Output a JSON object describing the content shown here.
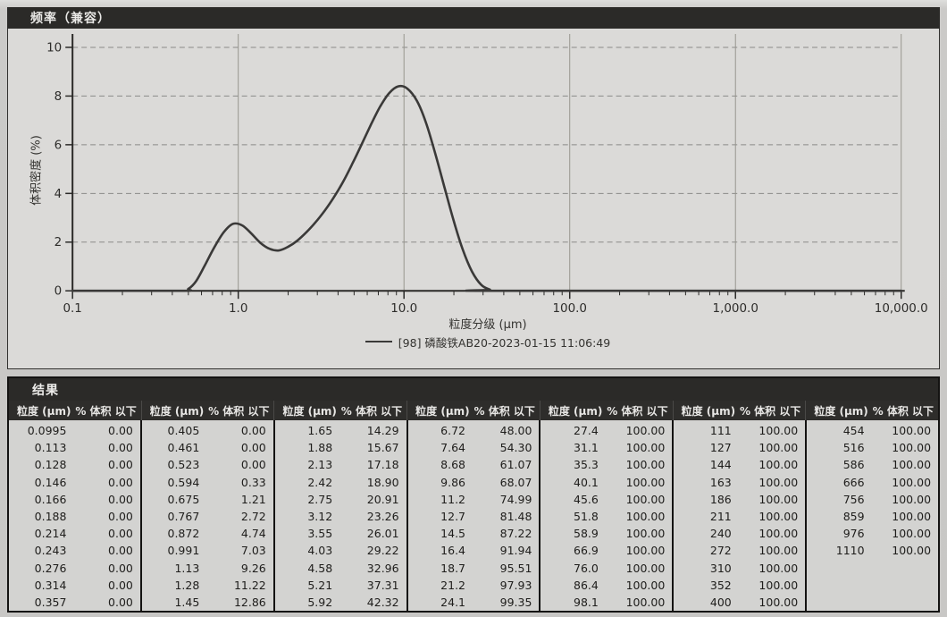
{
  "chart": {
    "title": "频率（兼容）",
    "y_label": "体积密度 (%)",
    "x_label": "粒度分级 (μm)",
    "legend": "[98] 磷酸铁AB20-2023-01-15 11:06:49"
  },
  "chart_data": {
    "type": "line",
    "title": "频率（兼容）",
    "xlabel": "粒度分级 (μm)",
    "ylabel": "体积密度 (%)",
    "x_scale": "log",
    "xlim": [
      0.1,
      10000
    ],
    "ylim": [
      0,
      10
    ],
    "x_ticks": [
      "0.1",
      "1.0",
      "10.0",
      "100.0",
      "1,000.0",
      "10,000.0"
    ],
    "x_tick_values": [
      0.1,
      1,
      10,
      100,
      1000,
      10000
    ],
    "y_ticks": [
      0,
      2,
      4,
      6,
      8,
      10
    ],
    "grid": true,
    "legend_position": "bottom",
    "series": [
      {
        "name": "[98] 磷酸铁AB20-2023-01-15 11:06:49",
        "points": [
          [
            0.1,
            0
          ],
          [
            0.45,
            0
          ],
          [
            0.5,
            0.08
          ],
          [
            0.557,
            0.4
          ],
          [
            0.63,
            1.06
          ],
          [
            0.72,
            1.81
          ],
          [
            0.82,
            2.42
          ],
          [
            0.93,
            2.75
          ],
          [
            1.06,
            2.68
          ],
          [
            1.2,
            2.35
          ],
          [
            1.36,
            1.97
          ],
          [
            1.55,
            1.72
          ],
          [
            1.76,
            1.66
          ],
          [
            2.0,
            1.81
          ],
          [
            2.27,
            2.06
          ],
          [
            2.58,
            2.41
          ],
          [
            2.93,
            2.82
          ],
          [
            3.33,
            3.3
          ],
          [
            3.78,
            3.85
          ],
          [
            4.3,
            4.49
          ],
          [
            4.88,
            5.22
          ],
          [
            5.55,
            6.01
          ],
          [
            6.31,
            6.82
          ],
          [
            7.17,
            7.56
          ],
          [
            8.14,
            8.12
          ],
          [
            9.26,
            8.4
          ],
          [
            10.5,
            8.3
          ],
          [
            12.0,
            7.79
          ],
          [
            13.6,
            6.89
          ],
          [
            15.4,
            5.66
          ],
          [
            17.5,
            4.28
          ],
          [
            19.9,
            2.9
          ],
          [
            22.6,
            1.7
          ],
          [
            25.7,
            0.8
          ],
          [
            29.2,
            0.25
          ],
          [
            33,
            0.05
          ],
          [
            37,
            0
          ],
          [
            10000,
            0
          ]
        ]
      }
    ]
  },
  "results": {
    "title": "结果",
    "header_size": "粒度 (μm)",
    "header_pct": "% 体积 以下",
    "columns": [
      [
        [
          "0.0995",
          "0.00"
        ],
        [
          "0.113",
          "0.00"
        ],
        [
          "0.128",
          "0.00"
        ],
        [
          "0.146",
          "0.00"
        ],
        [
          "0.166",
          "0.00"
        ],
        [
          "0.188",
          "0.00"
        ],
        [
          "0.214",
          "0.00"
        ],
        [
          "0.243",
          "0.00"
        ],
        [
          "0.276",
          "0.00"
        ],
        [
          "0.314",
          "0.00"
        ],
        [
          "0.357",
          "0.00"
        ]
      ],
      [
        [
          "0.405",
          "0.00"
        ],
        [
          "0.461",
          "0.00"
        ],
        [
          "0.523",
          "0.00"
        ],
        [
          "0.594",
          "0.33"
        ],
        [
          "0.675",
          "1.21"
        ],
        [
          "0.767",
          "2.72"
        ],
        [
          "0.872",
          "4.74"
        ],
        [
          "0.991",
          "7.03"
        ],
        [
          "1.13",
          "9.26"
        ],
        [
          "1.28",
          "11.22"
        ],
        [
          "1.45",
          "12.86"
        ]
      ],
      [
        [
          "1.65",
          "14.29"
        ],
        [
          "1.88",
          "15.67"
        ],
        [
          "2.13",
          "17.18"
        ],
        [
          "2.42",
          "18.90"
        ],
        [
          "2.75",
          "20.91"
        ],
        [
          "3.12",
          "23.26"
        ],
        [
          "3.55",
          "26.01"
        ],
        [
          "4.03",
          "29.22"
        ],
        [
          "4.58",
          "32.96"
        ],
        [
          "5.21",
          "37.31"
        ],
        [
          "5.92",
          "42.32"
        ]
      ],
      [
        [
          "6.72",
          "48.00"
        ],
        [
          "7.64",
          "54.30"
        ],
        [
          "8.68",
          "61.07"
        ],
        [
          "9.86",
          "68.07"
        ],
        [
          "11.2",
          "74.99"
        ],
        [
          "12.7",
          "81.48"
        ],
        [
          "14.5",
          "87.22"
        ],
        [
          "16.4",
          "91.94"
        ],
        [
          "18.7",
          "95.51"
        ],
        [
          "21.2",
          "97.93"
        ],
        [
          "24.1",
          "99.35"
        ]
      ],
      [
        [
          "27.4",
          "100.00"
        ],
        [
          "31.1",
          "100.00"
        ],
        [
          "35.3",
          "100.00"
        ],
        [
          "40.1",
          "100.00"
        ],
        [
          "45.6",
          "100.00"
        ],
        [
          "51.8",
          "100.00"
        ],
        [
          "58.9",
          "100.00"
        ],
        [
          "66.9",
          "100.00"
        ],
        [
          "76.0",
          "100.00"
        ],
        [
          "86.4",
          "100.00"
        ],
        [
          "98.1",
          "100.00"
        ]
      ],
      [
        [
          "111",
          "100.00"
        ],
        [
          "127",
          "100.00"
        ],
        [
          "144",
          "100.00"
        ],
        [
          "163",
          "100.00"
        ],
        [
          "186",
          "100.00"
        ],
        [
          "211",
          "100.00"
        ],
        [
          "240",
          "100.00"
        ],
        [
          "272",
          "100.00"
        ],
        [
          "310",
          "100.00"
        ],
        [
          "352",
          "100.00"
        ],
        [
          "400",
          "100.00"
        ]
      ],
      [
        [
          "454",
          "100.00"
        ],
        [
          "516",
          "100.00"
        ],
        [
          "586",
          "100.00"
        ],
        [
          "666",
          "100.00"
        ],
        [
          "756",
          "100.00"
        ],
        [
          "859",
          "100.00"
        ],
        [
          "976",
          "100.00"
        ],
        [
          "1110",
          "100.00"
        ]
      ]
    ]
  },
  "colors": {
    "curve": "#3a3938",
    "dark_bar": "#2b2a28",
    "panel_bg": "#dbdad8",
    "grid_h": "#8b8a88",
    "grid_v": "#97968f",
    "axis": "#2a2927"
  }
}
